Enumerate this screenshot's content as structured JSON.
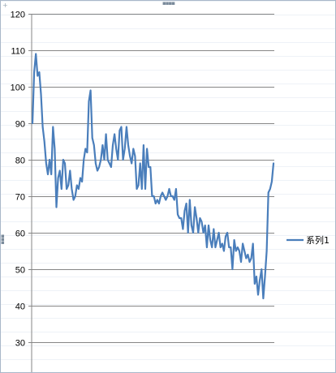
{
  "chart_data": {
    "type": "line",
    "title": "",
    "xlabel": "",
    "ylabel": "",
    "ylim": [
      25,
      120
    ],
    "yticks": [
      120,
      110,
      100,
      90,
      80,
      70,
      60,
      50,
      40,
      30
    ],
    "grid": "horizontal",
    "legend_position": "right",
    "series": [
      {
        "name": "系列1",
        "color": "#4a7ebb",
        "values": [
          90,
          104,
          109,
          103,
          104,
          98,
          89,
          85,
          79,
          76,
          80,
          76,
          89,
          83,
          67,
          75,
          77,
          72,
          80,
          79,
          72,
          73,
          77,
          72,
          69,
          70,
          73,
          72,
          75,
          74,
          80,
          83,
          82,
          96,
          99,
          86,
          84,
          79,
          77,
          78,
          80,
          84,
          80,
          87,
          80,
          79,
          78,
          84,
          87,
          83,
          80,
          88,
          89,
          80,
          83,
          89,
          84,
          81,
          79,
          83,
          81,
          72,
          73,
          79,
          72,
          84,
          72,
          83,
          78,
          78,
          70,
          70,
          68,
          69,
          68,
          70,
          71,
          70,
          69,
          70,
          72,
          70,
          70,
          69,
          72,
          65,
          64,
          64,
          61,
          66,
          68,
          60,
          69,
          62,
          60,
          67,
          64,
          60,
          64,
          63,
          60,
          62,
          56,
          62,
          58,
          56,
          61,
          56,
          58,
          60,
          56,
          57,
          55,
          59,
          60,
          56,
          56,
          50,
          58,
          55,
          56,
          55,
          52,
          57,
          55,
          53,
          54,
          52,
          53,
          57,
          46,
          48,
          43,
          47,
          50,
          42,
          48,
          55,
          71,
          72,
          74,
          79
        ]
      }
    ]
  }
}
